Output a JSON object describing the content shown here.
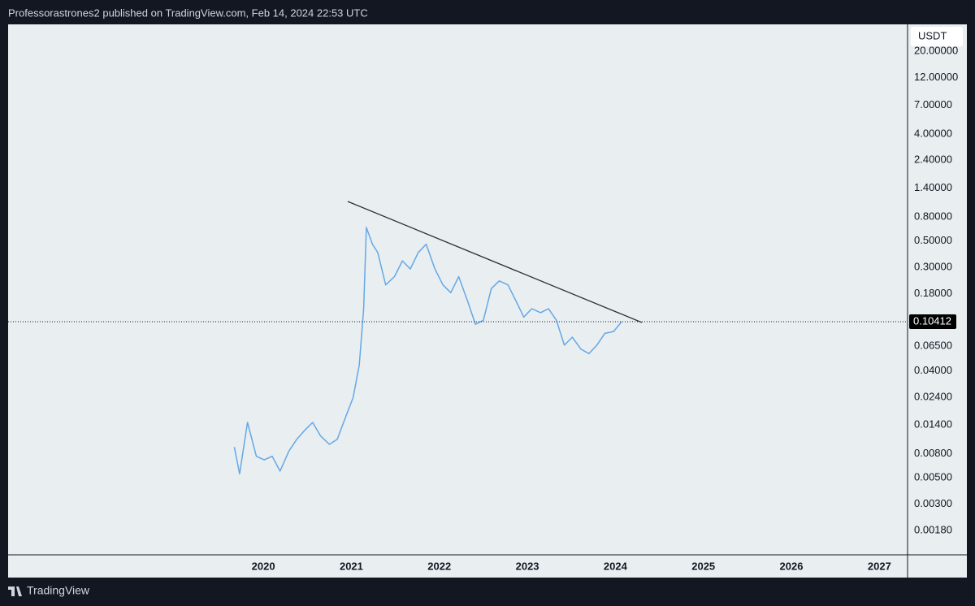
{
  "header": "Professorastrones2 published on TradingView.com, Feb 14, 2024 22:53 UTC",
  "footer": "TradingView",
  "chart_data": {
    "type": "line",
    "currency": "USDT",
    "log_scale": true,
    "grid": false,
    "series": [
      {
        "color": "#64a8e6",
        "x": [
          2019.67,
          2019.73,
          2019.82,
          2019.92,
          2020.01,
          2020.1,
          2020.19,
          2020.29,
          2020.38,
          2020.47,
          2020.56,
          2020.65,
          2020.75,
          2020.84,
          2020.93,
          2021.02,
          2021.09,
          2021.14,
          2021.17,
          2021.24,
          2021.3,
          2021.39,
          2021.49,
          2021.58,
          2021.67,
          2021.76,
          2021.85,
          2021.95,
          2022.04,
          2022.13,
          2022.22,
          2022.32,
          2022.41,
          2022.5,
          2022.59,
          2022.68,
          2022.78,
          2022.87,
          2022.96,
          2023.05,
          2023.15,
          2023.24,
          2023.33,
          2023.42,
          2023.51,
          2023.61,
          2023.7,
          2023.79,
          2023.88,
          2023.98,
          2024.07
        ],
        "values": [
          0.0091,
          0.0054,
          0.0147,
          0.0076,
          0.0071,
          0.0076,
          0.0057,
          0.0084,
          0.0106,
          0.0126,
          0.0147,
          0.0113,
          0.0096,
          0.0106,
          0.016,
          0.0238,
          0.045,
          0.134,
          0.65,
          0.47,
          0.4,
          0.213,
          0.25,
          0.34,
          0.29,
          0.4,
          0.47,
          0.29,
          0.213,
          0.183,
          0.25,
          0.156,
          0.099,
          0.107,
          0.198,
          0.23,
          0.213,
          0.156,
          0.114,
          0.134,
          0.124,
          0.134,
          0.107,
          0.066,
          0.077,
          0.061,
          0.056,
          0.066,
          0.083,
          0.086,
          0.104
        ]
      }
    ],
    "last_price": 0.10412,
    "xlim": [
      2017.1,
      2027.32
    ],
    "xticks": [
      2020,
      2021,
      2022,
      2023,
      2024,
      2025,
      2026,
      2027
    ],
    "ylim": [
      0.00112,
      33.7
    ],
    "yticks": [
      {
        "value": 20,
        "label": "20.00000"
      },
      {
        "value": 12,
        "label": "12.00000"
      },
      {
        "value": 7,
        "label": "7.00000"
      },
      {
        "value": 4,
        "label": "4.00000"
      },
      {
        "value": 2.4,
        "label": "2.40000"
      },
      {
        "value": 1.4,
        "label": "1.40000"
      },
      {
        "value": 0.8,
        "label": "0.80000"
      },
      {
        "value": 0.5,
        "label": "0.50000"
      },
      {
        "value": 0.3,
        "label": "0.30000"
      },
      {
        "value": 0.18,
        "label": "0.18000"
      },
      {
        "value": 0.065,
        "label": "0.06500"
      },
      {
        "value": 0.04,
        "label": "0.04000"
      },
      {
        "value": 0.024,
        "label": "0.02400"
      },
      {
        "value": 0.014,
        "label": "0.01400"
      },
      {
        "value": 0.008,
        "label": "0.00800"
      },
      {
        "value": 0.005,
        "label": "0.00500"
      },
      {
        "value": 0.003,
        "label": "0.00300"
      },
      {
        "value": 0.0018,
        "label": "0.00180"
      }
    ]
  }
}
